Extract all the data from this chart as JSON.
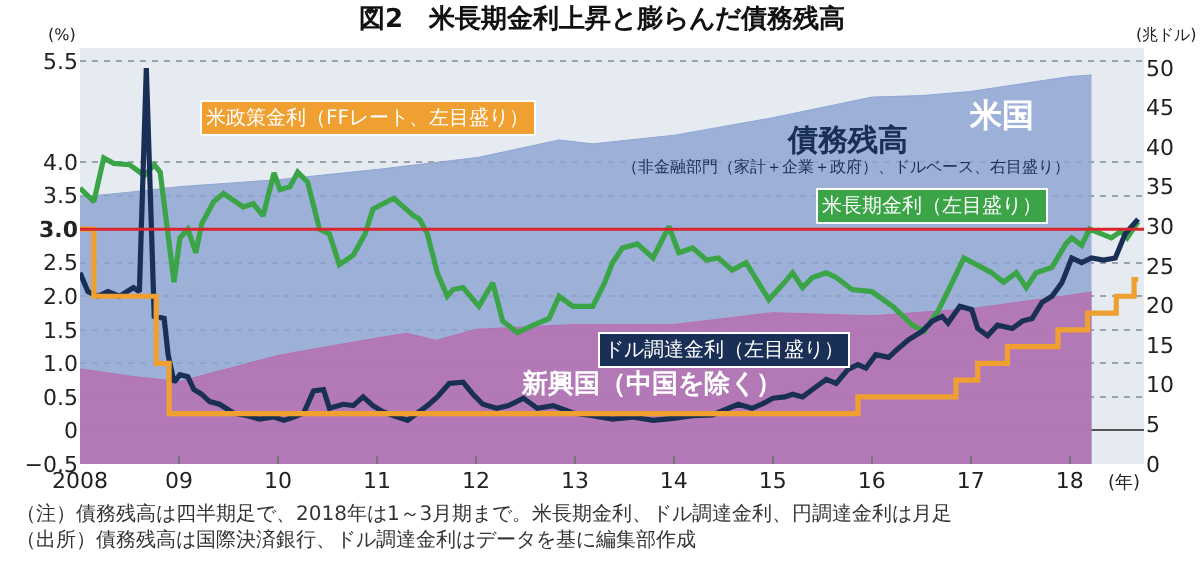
{
  "chart_data": {
    "type": "line",
    "title": "図2　米長期金利上昇と膨らんだ債務残高",
    "ylabel": "(%)",
    "y2label": "(兆ドル)",
    "xlabel": "(年)",
    "xlim": [
      2008,
      2018.75
    ],
    "xticks": [
      2008,
      {
        "value": 2009,
        "label": "09"
      },
      {
        "value": 2010,
        "label": "10"
      },
      {
        "value": 2011,
        "label": "11"
      },
      {
        "value": 2012,
        "label": "12"
      },
      {
        "value": 2013,
        "label": "13"
      },
      {
        "value": 2014,
        "label": "14"
      },
      {
        "value": 2015,
        "label": "15"
      },
      {
        "value": 2016,
        "label": "16"
      },
      {
        "value": 2017,
        "label": "17"
      },
      {
        "value": 2018,
        "label": "18"
      }
    ],
    "ylim": [
      -0.5,
      5.7
    ],
    "yticks": [
      {
        "value": -0.5,
        "label": "−0.5"
      },
      0,
      0.5,
      {
        "value": 1,
        "label": "1.0"
      },
      1.5,
      {
        "value": 2,
        "label": "2.0"
      },
      2.5,
      {
        "value": 3,
        "label": "3.0"
      },
      3.5,
      {
        "value": 4,
        "label": "4.0"
      },
      5.5
    ],
    "y2lim": [
      0,
      52.5
    ],
    "y2ticks": [
      0,
      5,
      10,
      15,
      20,
      25,
      30,
      35,
      40,
      45,
      50
    ],
    "grid": "y",
    "line_style": "solid",
    "marker": "none",
    "ref_lines": [
      {
        "axis": "y",
        "value": 3.0,
        "label": null,
        "color": "#d7262e"
      }
    ],
    "series": [
      {
        "name": "米国",
        "type": "area",
        "axis": "y2",
        "color": "#8ea6d3",
        "x": [
          2008,
          2008.5,
          2009.0,
          2010.02,
          2011.02,
          2012.03,
          2012.84,
          2013.18,
          2014.01,
          2015.0,
          2016.0,
          2016.51,
          2016.99,
          2018.0,
          2018.22
        ],
        "values": [
          33.7,
          34.3,
          35,
          35.9,
          37.2,
          38.7,
          40.9,
          40.4,
          41.5,
          43.7,
          46.3,
          46.5,
          47,
          48.9,
          49.1
        ]
      },
      {
        "name": "新興国（中国を除く）",
        "type": "area",
        "axis": "y2",
        "color": "#b770b0",
        "x": [
          2008,
          2008.5,
          2009.0,
          2010.0,
          2011.0,
          2011.3,
          2011.6,
          2012.0,
          2013.0,
          2014.0,
          2015.0,
          2016.0,
          2017.0,
          2018.0,
          2018.22
        ],
        "values": [
          12.0,
          11.1,
          10.4,
          13.7,
          15.9,
          16.5,
          15.6,
          17.0,
          17.6,
          17.6,
          19.1,
          18.7,
          19.6,
          21.3,
          21.7
        ]
      },
      {
        "name": "米長期金利（左目盛り）",
        "color": "#3aa447",
        "x": [
          2008.0,
          2008.14,
          2008.24,
          2008.34,
          2008.5,
          2008.65,
          2008.75,
          2008.81,
          2008.95,
          2009.01,
          2009.09,
          2009.17,
          2009.23,
          2009.35,
          2009.45,
          2009.57,
          2009.65,
          2009.75,
          2009.85,
          2009.96,
          2010.02,
          2010.12,
          2010.2,
          2010.3,
          2010.42,
          2010.52,
          2010.62,
          2010.76,
          2010.88,
          2010.96,
          2011.17,
          2011.37,
          2011.43,
          2011.51,
          2011.61,
          2011.71,
          2011.77,
          2011.87,
          2012.03,
          2012.17,
          2012.27,
          2012.42,
          2012.58,
          2012.74,
          2012.84,
          2012.98,
          2013.18,
          2013.3,
          2013.38,
          2013.48,
          2013.63,
          2013.79,
          2013.95,
          2014.05,
          2014.19,
          2014.33,
          2014.45,
          2014.59,
          2014.73,
          2014.85,
          2014.96,
          2015.12,
          2015.2,
          2015.3,
          2015.4,
          2015.54,
          2015.64,
          2015.8,
          2016.0,
          2016.21,
          2016.41,
          2016.53,
          2016.67,
          2016.81,
          2016.93,
          2017.11,
          2017.21,
          2017.33,
          2017.46,
          2017.56,
          2017.66,
          2017.82,
          2017.96,
          2018.02,
          2018.12,
          2018.2,
          2018.32,
          2018.42,
          2018.52,
          2018.58,
          2018.69
        ],
        "values": [
          3.61,
          3.41,
          4.06,
          3.98,
          3.96,
          3.8,
          3.96,
          3.85,
          2.21,
          2.87,
          3.0,
          2.65,
          3.08,
          3.41,
          3.53,
          3.41,
          3.33,
          3.38,
          3.2,
          3.84,
          3.59,
          3.63,
          3.85,
          3.7,
          3.0,
          2.93,
          2.47,
          2.61,
          2.93,
          3.3,
          3.46,
          3.2,
          3.15,
          2.93,
          2.35,
          2.0,
          2.1,
          2.13,
          1.85,
          2.2,
          1.63,
          1.46,
          1.57,
          1.67,
          2.0,
          1.85,
          1.85,
          2.2,
          2.5,
          2.72,
          2.78,
          2.57,
          3.04,
          2.65,
          2.72,
          2.54,
          2.57,
          2.39,
          2.5,
          2.21,
          1.95,
          2.21,
          2.35,
          2.13,
          2.28,
          2.35,
          2.28,
          2.1,
          2.07,
          1.85,
          1.57,
          1.48,
          1.78,
          2.2,
          2.57,
          2.43,
          2.35,
          2.21,
          2.35,
          2.13,
          2.35,
          2.43,
          2.78,
          2.87,
          2.76,
          3.0,
          2.93,
          2.87,
          2.97,
          2.87,
          3.11
        ]
      },
      {
        "name": "ドル調達金利（左目盛り）",
        "color": "#1a2f55",
        "x": [
          2008.0,
          2008.08,
          2008.18,
          2008.28,
          2008.4,
          2008.54,
          2008.6,
          2008.67,
          2008.75,
          2008.85,
          2008.89,
          2008.95,
          2009.01,
          2009.09,
          2009.15,
          2009.23,
          2009.31,
          2009.41,
          2009.55,
          2009.69,
          2009.81,
          2009.96,
          2010.06,
          2010.16,
          2010.26,
          2010.36,
          2010.46,
          2010.52,
          2010.66,
          2010.76,
          2010.86,
          2010.96,
          2011.06,
          2011.17,
          2011.31,
          2011.41,
          2011.51,
          2011.61,
          2011.73,
          2011.87,
          2011.97,
          2012.07,
          2012.21,
          2012.33,
          2012.48,
          2012.62,
          2012.78,
          2012.98,
          2013.18,
          2013.38,
          2013.58,
          2013.79,
          2013.99,
          2014.19,
          2014.39,
          2014.65,
          2014.79,
          2014.9,
          2015.0,
          2015.12,
          2015.2,
          2015.3,
          2015.4,
          2015.54,
          2015.64,
          2015.76,
          2015.86,
          2015.94,
          2016.04,
          2016.17,
          2016.25,
          2016.37,
          2016.51,
          2016.61,
          2016.71,
          2016.77,
          2016.89,
          2017.01,
          2017.07,
          2017.17,
          2017.27,
          2017.42,
          2017.52,
          2017.62,
          2017.72,
          2017.82,
          2017.92,
          2018.02,
          2018.12,
          2018.22,
          2018.34,
          2018.46,
          2018.56,
          2018.69
        ],
        "values": [
          2.35,
          2.07,
          2.0,
          2.07,
          2.0,
          2.13,
          2.07,
          5.4,
          1.7,
          1.67,
          1.13,
          0.72,
          0.83,
          0.8,
          0.61,
          0.54,
          0.43,
          0.39,
          0.26,
          0.22,
          0.17,
          0.2,
          0.15,
          0.2,
          0.26,
          0.59,
          0.61,
          0.33,
          0.39,
          0.37,
          0.5,
          0.37,
          0.28,
          0.22,
          0.15,
          0.26,
          0.37,
          0.5,
          0.7,
          0.72,
          0.54,
          0.39,
          0.33,
          0.37,
          0.48,
          0.33,
          0.37,
          0.26,
          0.22,
          0.17,
          0.2,
          0.15,
          0.18,
          0.22,
          0.23,
          0.39,
          0.33,
          0.4,
          0.48,
          0.5,
          0.54,
          0.5,
          0.61,
          0.76,
          0.7,
          0.91,
          0.98,
          0.93,
          1.13,
          1.09,
          1.2,
          1.35,
          1.48,
          1.63,
          1.7,
          1.6,
          1.85,
          1.8,
          1.52,
          1.41,
          1.57,
          1.52,
          1.63,
          1.67,
          1.91,
          2.0,
          2.2,
          2.57,
          2.5,
          2.57,
          2.54,
          2.57,
          2.93,
          3.15
        ]
      },
      {
        "name": "米政策金利（FFレート、左目盛り）",
        "type": "step",
        "color": "#f0a030",
        "x": [
          2008.0,
          2008.14,
          2008.77,
          2008.9,
          2015.86,
          2016.85,
          2017.07,
          2017.37,
          2017.88,
          2018.18,
          2018.47,
          2018.65,
          2018.69
        ],
        "values": [
          3.0,
          2.0,
          1.0,
          0.25,
          0.5,
          0.75,
          1.0,
          1.25,
          1.5,
          1.75,
          2.0,
          2.25,
          2.25
        ]
      }
    ],
    "annotations": [
      "債務残高",
      "（非金融部門（家計＋企業＋政府）、ドルベース、右目盛り）",
      "（注）債務残高は四半期足で、2018年は1～3月期まで。米長期金利、ドル調達金利、円調達金利は月足",
      "（出所）債務残高は国際決済銀行、ドル調達金利はデータを基に編集部作成"
    ]
  }
}
